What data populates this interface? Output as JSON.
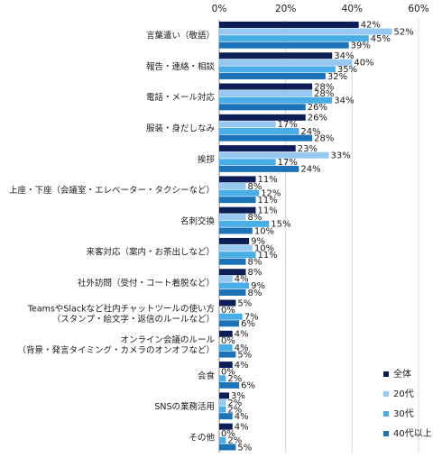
{
  "chart_data": {
    "type": "bar",
    "orientation": "horizontal",
    "xlim": [
      0,
      60
    ],
    "x_ticks": [
      "0%",
      "20%",
      "40%",
      "60%"
    ],
    "x_tick_values": [
      0,
      20,
      40,
      60
    ],
    "grid": "vertical gridlines",
    "legend_position": "bottom-right",
    "colors": [
      "#0d1e57",
      "#96c8f2",
      "#4aaee6",
      "#1c73b8"
    ],
    "categories": [
      [
        "言葉遣い（敬語）"
      ],
      [
        "報告・連絡・相談"
      ],
      [
        "電話・メール対応"
      ],
      [
        "服装・身だしなみ"
      ],
      [
        "挨拶"
      ],
      [
        "上座・下座（会議室・エレベーター・タクシーなど）"
      ],
      [
        "名刺交換"
      ],
      [
        "来客対応（案内・お茶出しなど）"
      ],
      [
        "社外訪問（受付・コート着脱など）"
      ],
      [
        "TeamsやSlackなど社内チャットツールの使い方",
        "（スタンプ・絵文字・返信のルールなど）"
      ],
      [
        "オンライン会議のルール",
        "（背景・発言タイミング・カメラのオンオフなど）"
      ],
      [
        "会食"
      ],
      [
        "SNSの業務活用"
      ],
      [
        "その他"
      ]
    ],
    "series": [
      {
        "name": "全体",
        "values": [
          42,
          34,
          28,
          26,
          23,
          11,
          11,
          9,
          8,
          5,
          4,
          4,
          3,
          4
        ]
      },
      {
        "name": "20代",
        "values": [
          52,
          40,
          28,
          17,
          33,
          8,
          8,
          10,
          4,
          0,
          0,
          0,
          2,
          0
        ]
      },
      {
        "name": "30代",
        "values": [
          45,
          35,
          34,
          24,
          17,
          12,
          15,
          11,
          9,
          7,
          4,
          2,
          2,
          2
        ]
      },
      {
        "name": "40代以上",
        "values": [
          39,
          32,
          26,
          28,
          24,
          11,
          10,
          8,
          8,
          6,
          5,
          6,
          4,
          5
        ]
      }
    ],
    "value_suffix": "%"
  }
}
